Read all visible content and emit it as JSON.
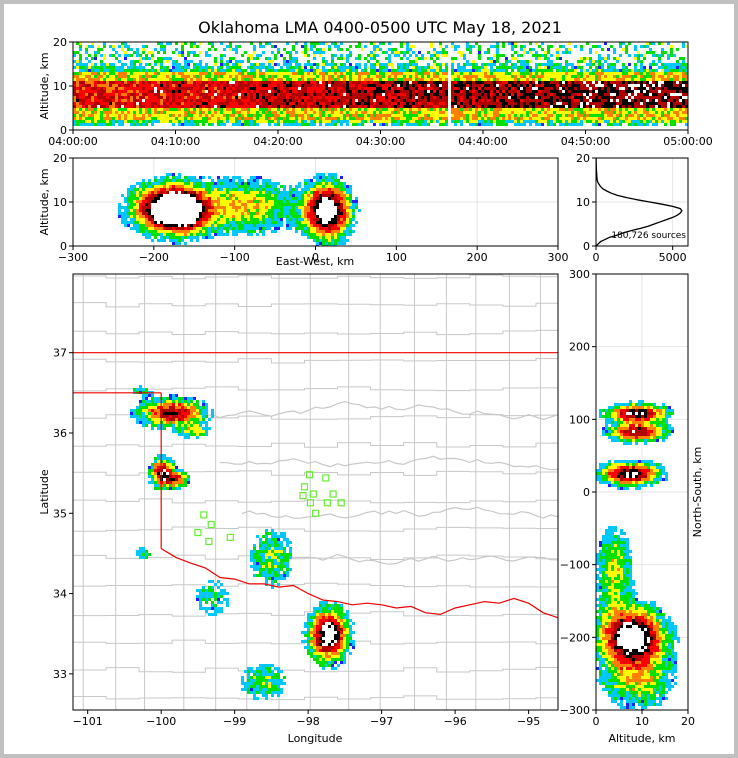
{
  "chart_data": {
    "type": "scatter",
    "title": "Oklahoma LMA 0400-0500 UTC May 18, 2021",
    "source_count_label": "180,726 sources",
    "colors": {
      "density_scale": [
        "#2020ff",
        "#00c8ff",
        "#00e000",
        "#ffff00",
        "#ff8000",
        "#ff0000",
        "#b00000",
        "#000000",
        "#ffffff"
      ],
      "state_line": "#ee0000",
      "county_line": "#c8c8c8",
      "network_station": "#66ee33"
    },
    "panels": [
      {
        "name": "time-height",
        "xlabel": "",
        "ylabel": "Altitude, km",
        "xticks": [
          "04:00:00",
          "04:10:00",
          "04:20:00",
          "04:30:00",
          "04:40:00",
          "04:50:00",
          "05:00:00"
        ],
        "yticks": [
          "0",
          "10",
          "20"
        ],
        "xlim_minutes": [
          0,
          60
        ],
        "ylim": [
          0,
          20
        ],
        "activity_band_km": [
          2,
          13
        ],
        "core_band_km": [
          5,
          11
        ],
        "gap_minutes": [
          36.6,
          36.9
        ]
      },
      {
        "name": "east-west-altitude",
        "xlabel": "East-West, km",
        "ylabel": "Altitude, km",
        "xticks": [
          "−300",
          "−200",
          "−100",
          "0",
          "100",
          "200",
          "300"
        ],
        "yticks": [
          "0",
          "10",
          "20"
        ],
        "xlim": [
          -300,
          300
        ],
        "ylim": [
          0,
          20
        ],
        "clusters": [
          {
            "x": -185,
            "z": 8.5,
            "sx": 28,
            "sz": 3.5,
            "peak": 0.85
          },
          {
            "x": -165,
            "z": 8,
            "sx": 20,
            "sz": 3,
            "peak": 0.75
          },
          {
            "x": -90,
            "z": 9,
            "sx": 45,
            "sz": 4,
            "peak": 0.4
          },
          {
            "x": 15,
            "z": 8,
            "sx": 18,
            "sz": 4,
            "peak": 1.0
          }
        ]
      },
      {
        "name": "altitude-histogram",
        "xlabel": "",
        "ylabel": "",
        "xticks": [
          "0",
          "5000"
        ],
        "yticks": [
          "0",
          "10",
          "20"
        ],
        "xlim": [
          0,
          6000
        ],
        "ylim": [
          0,
          20
        ],
        "profile_z": [
          0,
          0.5,
          1,
          1.5,
          2,
          2.5,
          3,
          3.5,
          4,
          4.5,
          5,
          5.5,
          6,
          6.5,
          7,
          7.5,
          8,
          8.5,
          9,
          9.5,
          10,
          10.5,
          11,
          11.5,
          12,
          12.5,
          13,
          13.5,
          14,
          14.5,
          15,
          16,
          17,
          18,
          19,
          20
        ],
        "profile_count": [
          0,
          150,
          300,
          600,
          900,
          1400,
          1800,
          2300,
          2900,
          3400,
          3800,
          4200,
          4600,
          5000,
          5300,
          5500,
          5600,
          5500,
          5000,
          4300,
          3500,
          2700,
          2000,
          1400,
          1000,
          700,
          450,
          300,
          200,
          120,
          80,
          50,
          30,
          20,
          10,
          5
        ]
      },
      {
        "name": "plan-view",
        "xlabel": "Longitude",
        "ylabel": "Latitude",
        "xticks": [
          "−101",
          "−100",
          "−99",
          "−98",
          "−97",
          "−96",
          "−95"
        ],
        "yticks": [
          "33",
          "34",
          "35",
          "36",
          "37"
        ],
        "xlim": [
          -101.2,
          -94.6
        ],
        "ylim": [
          32.55,
          37.98
        ],
        "oklahoma_north_border_lat": 37.0,
        "panhandle_south_lat": 36.5,
        "texas_east_lon": -100.0,
        "red_river": [
          [
            -100.0,
            34.56
          ],
          [
            -99.8,
            34.45
          ],
          [
            -99.6,
            34.38
          ],
          [
            -99.4,
            34.32
          ],
          [
            -99.2,
            34.2
          ],
          [
            -99.0,
            34.18
          ],
          [
            -98.8,
            34.12
          ],
          [
            -98.6,
            34.12
          ],
          [
            -98.4,
            34.08
          ],
          [
            -98.2,
            34.1
          ],
          [
            -98.0,
            34.0
          ],
          [
            -97.8,
            33.92
          ],
          [
            -97.6,
            33.9
          ],
          [
            -97.4,
            33.86
          ],
          [
            -97.2,
            33.88
          ],
          [
            -97.0,
            33.86
          ],
          [
            -96.8,
            33.82
          ],
          [
            -96.6,
            33.84
          ],
          [
            -96.4,
            33.76
          ],
          [
            -96.2,
            33.74
          ],
          [
            -96.0,
            33.82
          ],
          [
            -95.8,
            33.86
          ],
          [
            -95.6,
            33.9
          ],
          [
            -95.4,
            33.88
          ],
          [
            -95.2,
            33.94
          ],
          [
            -95.0,
            33.88
          ],
          [
            -94.8,
            33.76
          ],
          [
            -94.6,
            33.7
          ]
        ],
        "stations": [
          [
            -97.98,
            35.48
          ],
          [
            -97.76,
            35.44
          ],
          [
            -98.05,
            35.33
          ],
          [
            -97.93,
            35.24
          ],
          [
            -98.07,
            35.22
          ],
          [
            -97.66,
            35.24
          ],
          [
            -97.97,
            35.13
          ],
          [
            -97.74,
            35.13
          ],
          [
            -97.55,
            35.13
          ],
          [
            -97.9,
            35.0
          ],
          [
            -99.42,
            34.98
          ],
          [
            -99.32,
            34.86
          ],
          [
            -99.5,
            34.76
          ],
          [
            -99.35,
            34.65
          ],
          [
            -99.06,
            34.7
          ]
        ],
        "clusters": [
          {
            "lon": -99.85,
            "lat": 36.25,
            "slon": 0.28,
            "slat": 0.11,
            "peak": 0.75
          },
          {
            "lon": -99.55,
            "lat": 36.02,
            "slon": 0.12,
            "slat": 0.06,
            "peak": 0.35
          },
          {
            "lon": -99.98,
            "lat": 35.5,
            "slon": 0.1,
            "slat": 0.11,
            "peak": 0.85
          },
          {
            "lon": -99.78,
            "lat": 35.42,
            "slon": 0.1,
            "slat": 0.06,
            "peak": 0.6
          },
          {
            "lon": -97.72,
            "lat": 33.48,
            "slon": 0.17,
            "slat": 0.2,
            "peak": 1.0
          },
          {
            "lon": -98.5,
            "lat": 34.45,
            "slon": 0.2,
            "slat": 0.25,
            "peak": 0.3
          },
          {
            "lon": -98.6,
            "lat": 32.9,
            "slon": 0.22,
            "slat": 0.15,
            "peak": 0.3
          },
          {
            "lon": -99.3,
            "lat": 33.95,
            "slon": 0.2,
            "slat": 0.2,
            "peak": 0.18
          },
          {
            "lon": -100.25,
            "lat": 36.52,
            "slon": 0.12,
            "slat": 0.05,
            "peak": 0.2
          },
          {
            "lon": -100.25,
            "lat": 34.5,
            "slon": 0.08,
            "slat": 0.05,
            "peak": 0.25
          }
        ]
      },
      {
        "name": "north-south-altitude",
        "xlabel": "Altitude, km",
        "ylabel": "North-South, km",
        "xticks": [
          "0",
          "10",
          "20"
        ],
        "yticks": [
          "−300",
          "−200",
          "−100",
          "0",
          "100",
          "200",
          "300"
        ],
        "xlim": [
          0,
          20
        ],
        "ylim": [
          -300,
          300
        ],
        "clusters": [
          {
            "z": 9,
            "y": 108,
            "sz": 4,
            "sy": 8,
            "peak": 0.85
          },
          {
            "z": 9,
            "y": 82,
            "sz": 4,
            "sy": 8,
            "peak": 0.75
          },
          {
            "z": 7.5,
            "y": 25,
            "sz": 4,
            "sy": 10,
            "peak": 0.85
          },
          {
            "z": 8,
            "y": -200,
            "sz": 4.5,
            "sy": 25,
            "peak": 1.0
          },
          {
            "z": 4,
            "y": -110,
            "sz": 2.5,
            "sy": 40,
            "peak": 0.35
          },
          {
            "z": 9,
            "y": -260,
            "sz": 5,
            "sy": 25,
            "peak": 0.35
          }
        ]
      }
    ]
  }
}
